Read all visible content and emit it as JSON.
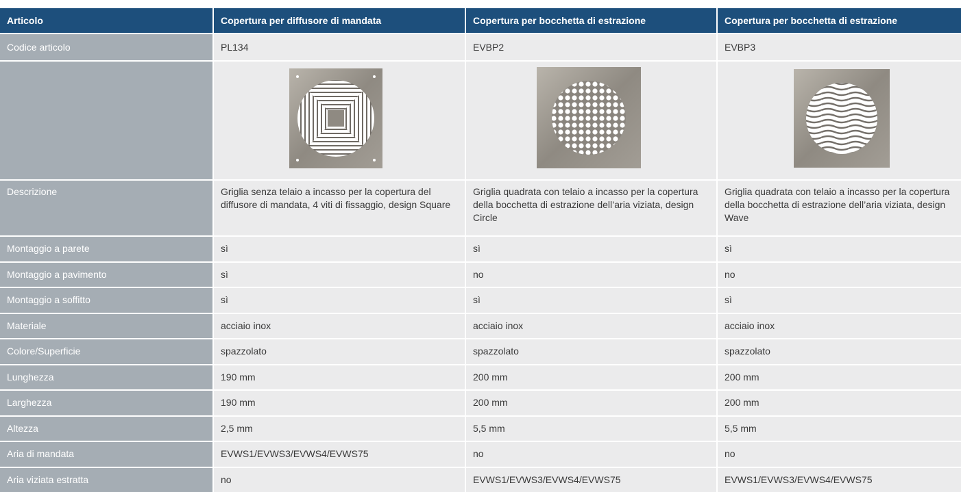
{
  "table": {
    "header": [
      "Articolo",
      "Copertura per diffusore di mandata",
      "Copertura per bocchetta di estrazione",
      "Copertura per bocchetta di estrazione"
    ],
    "code_row": {
      "label": "Codice articolo",
      "values": [
        "PL134",
        "EVBP2",
        "EVBP3"
      ]
    },
    "description_row": {
      "label": "Descrizione",
      "values": [
        "Griglia senza telaio a incasso per la copertura del diffusore di mandata, 4 viti di fissaggio, design Square",
        "Griglia quadrata con telaio a incasso per la copertura della bocchetta di estrazione dell’aria viziata, design Circle",
        "Griglia quadrata con telaio a incasso per la copertura della bocchetta di estrazione dell’aria viziata, design Wave"
      ]
    },
    "rows": [
      {
        "label": "Montaggio a parete",
        "values": [
          "sì",
          "sì",
          "sì"
        ]
      },
      {
        "label": "Montaggio a pavimento",
        "values": [
          "sì",
          "no",
          "no"
        ]
      },
      {
        "label": "Montaggio a soffitto",
        "values": [
          "sì",
          "sì",
          "sì"
        ]
      },
      {
        "label": "Materiale",
        "values": [
          "acciaio inox",
          "acciaio inox",
          "acciaio inox"
        ]
      },
      {
        "label": "Colore/Superficie",
        "values": [
          "spazzolato",
          "spazzolato",
          "spazzolato"
        ]
      },
      {
        "label": "Lunghezza",
        "values": [
          "190 mm",
          "200 mm",
          "200 mm"
        ]
      },
      {
        "label": "Larghezza",
        "values": [
          "190 mm",
          "200 mm",
          "200 mm"
        ]
      },
      {
        "label": "Altezza",
        "values": [
          "2,5 mm",
          "5,5 mm",
          "5,5 mm"
        ]
      },
      {
        "label": "Aria di mandata",
        "values": [
          "EVWS1/EVWS3/EVWS4/EVWS75",
          "no",
          "no"
        ]
      },
      {
        "label": "Aria viziata estratta",
        "values": [
          "no",
          "EVWS1/EVWS3/EVWS4/EVWS75",
          "EVWS1/EVWS3/EVWS4/EVWS75"
        ]
      }
    ]
  }
}
